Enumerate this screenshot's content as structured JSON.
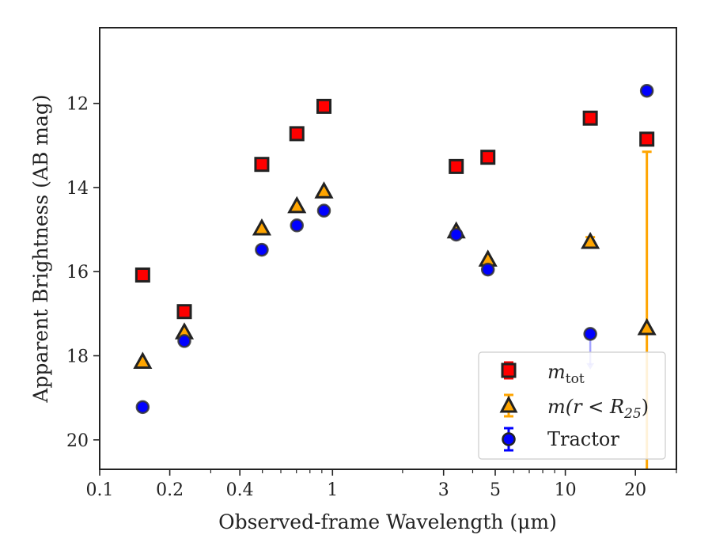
{
  "chart_data": {
    "type": "scatter",
    "xlabel": "Observed-frame Wavelength (μm)",
    "ylabel": "Apparent Brightness (AB mag)",
    "xscale": "log",
    "yaxis_inverted": true,
    "xlim": [
      0.1,
      30
    ],
    "ylim": [
      20.7,
      10.2
    ],
    "xticks": [
      0.1,
      0.2,
      0.4,
      1,
      3,
      5,
      10,
      20
    ],
    "xtick_labels": [
      "0.1",
      "0.2",
      "0.4",
      "1",
      "3",
      "5",
      "10",
      "20"
    ],
    "yticks": [
      12,
      14,
      16,
      18,
      20
    ],
    "ytick_labels": [
      "12",
      "14",
      "16",
      "18",
      "20"
    ],
    "grid": false,
    "legend_position": "lower-right",
    "series": [
      {
        "name": "m_tot",
        "marker": "square",
        "color": "#ff0000",
        "points": [
          {
            "x": 0.153,
            "y": 16.08
          },
          {
            "x": 0.231,
            "y": 16.95
          },
          {
            "x": 0.497,
            "y": 13.45
          },
          {
            "x": 0.703,
            "y": 12.72
          },
          {
            "x": 0.919,
            "y": 12.07
          },
          {
            "x": 3.4,
            "y": 13.5
          },
          {
            "x": 4.65,
            "y": 13.28
          },
          {
            "x": 12.8,
            "y": 12.35
          },
          {
            "x": 22.4,
            "y": 12.85
          }
        ]
      },
      {
        "name": "m(r < R25)",
        "marker": "triangle",
        "color": "#ffa500",
        "points": [
          {
            "x": 0.153,
            "y": 18.15
          },
          {
            "x": 0.231,
            "y": 17.45
          },
          {
            "x": 0.497,
            "y": 14.98
          },
          {
            "x": 0.703,
            "y": 14.45
          },
          {
            "x": 0.919,
            "y": 14.1
          },
          {
            "x": 3.4,
            "y": 15.05
          },
          {
            "x": 4.65,
            "y": 15.72
          },
          {
            "x": 12.8,
            "y": 15.3,
            "yerr": 0.12
          },
          {
            "x": 22.4,
            "y": 17.35,
            "yerr_upper": 4.2
          }
        ]
      },
      {
        "name": "Tractor",
        "marker": "circle",
        "color": "#0000ff",
        "points": [
          {
            "x": 0.153,
            "y": 19.22
          },
          {
            "x": 0.231,
            "y": 17.65
          },
          {
            "x": 0.497,
            "y": 15.48
          },
          {
            "x": 0.703,
            "y": 14.9
          },
          {
            "x": 0.919,
            "y": 14.55
          },
          {
            "x": 3.4,
            "y": 15.12
          },
          {
            "x": 4.65,
            "y": 15.95
          },
          {
            "x": 12.8,
            "y": 17.48,
            "upper_limit": true
          },
          {
            "x": 22.4,
            "y": 11.7
          }
        ]
      }
    ]
  },
  "legend": {
    "m_tot_base": "m",
    "m_tot_sub": "tot",
    "m_r_base": "m",
    "m_r_mid": "(r < R",
    "m_r_sub": "25",
    "m_r_end": ")",
    "tractor": "Tractor"
  }
}
